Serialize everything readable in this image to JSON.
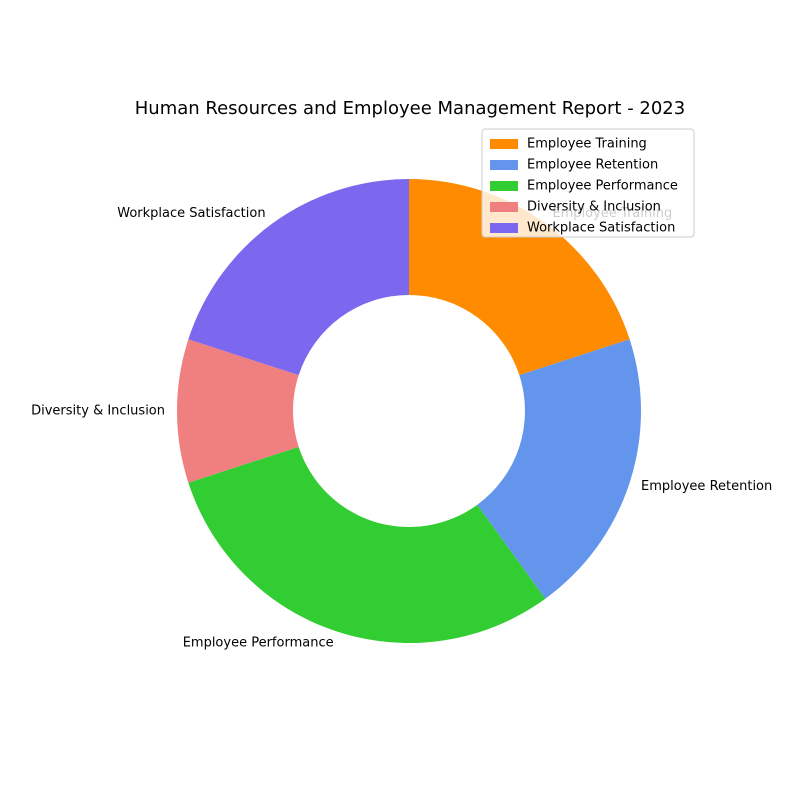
{
  "chart_data": {
    "type": "pie",
    "donut": true,
    "title": "Human Resources and Employee Management Report - 2023",
    "categories": [
      "Employee Training",
      "Employee Retention",
      "Employee Performance",
      "Diversity & Inclusion",
      "Workplace Satisfaction"
    ],
    "values": [
      20,
      20,
      30,
      10,
      20
    ],
    "colors": [
      "#ff8c00",
      "#6495ed",
      "#32cd32",
      "#f08080",
      "#7b68ee"
    ],
    "start_angle": "top",
    "direction": "clockwise",
    "legend": {
      "position": "top-right",
      "entries": [
        "Employee Training",
        "Employee Retention",
        "Employee Performance",
        "Diversity & Inclusion",
        "Workplace Satisfaction"
      ]
    }
  }
}
